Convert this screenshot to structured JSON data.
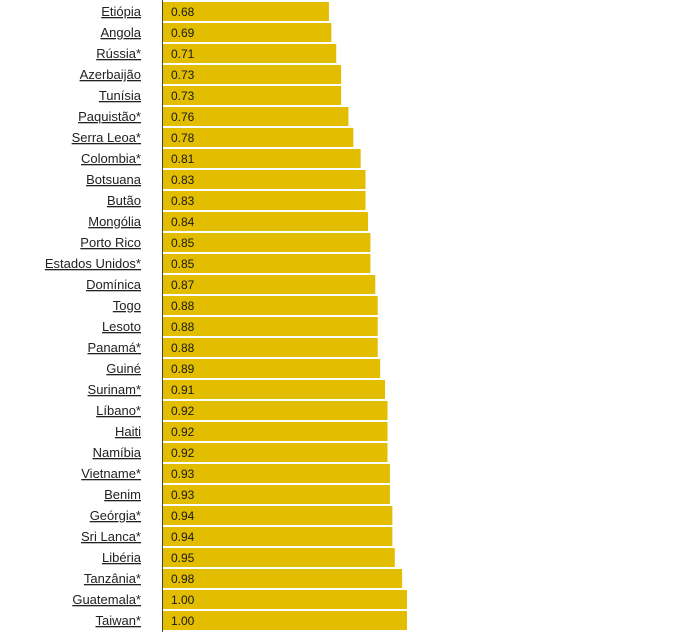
{
  "chart_data": {
    "type": "bar",
    "orientation": "horizontal",
    "title": "",
    "xlabel": "",
    "ylabel": "",
    "xlim": [
      0,
      1.0
    ],
    "grid": false,
    "legend": "none",
    "bar_color": "#e2bd00",
    "categories": [
      "Etiópia",
      "Angola",
      "Rússia*",
      "Azerbaijão",
      "Tunísia",
      "Paquistão*",
      "Serra Leoa*",
      "Colombia*",
      "Botsuana",
      "Butão",
      "Mongólia",
      "Porto Rico",
      "Estados Unidos*",
      "Domínica",
      "Togo",
      "Lesoto",
      "Panamá*",
      "Guiné",
      "Surinam*",
      "Líbano*",
      "Haiti",
      "Namíbia",
      "Vietname*",
      "Benim",
      "Geórgia*",
      "Sri Lanca*",
      "Libéria",
      "Tanzânia*",
      "Guatemala*",
      "Taiwan*"
    ],
    "values": [
      0.68,
      0.69,
      0.71,
      0.73,
      0.73,
      0.76,
      0.78,
      0.81,
      0.83,
      0.83,
      0.84,
      0.85,
      0.85,
      0.87,
      0.88,
      0.88,
      0.88,
      0.89,
      0.91,
      0.92,
      0.92,
      0.92,
      0.93,
      0.93,
      0.94,
      0.94,
      0.95,
      0.98,
      1.0,
      1.0
    ],
    "value_labels": [
      "0.68",
      "0.69",
      "0.71",
      "0.73",
      "0.73",
      "0.76",
      "0.78",
      "0.81",
      "0.83",
      "0.83",
      "0.84",
      "0.85",
      "0.85",
      "0.87",
      "0.88",
      "0.88",
      "0.88",
      "0.89",
      "0.91",
      "0.92",
      "0.92",
      "0.92",
      "0.93",
      "0.93",
      "0.94",
      "0.94",
      "0.95",
      "0.98",
      "1.00",
      "1.00"
    ]
  }
}
